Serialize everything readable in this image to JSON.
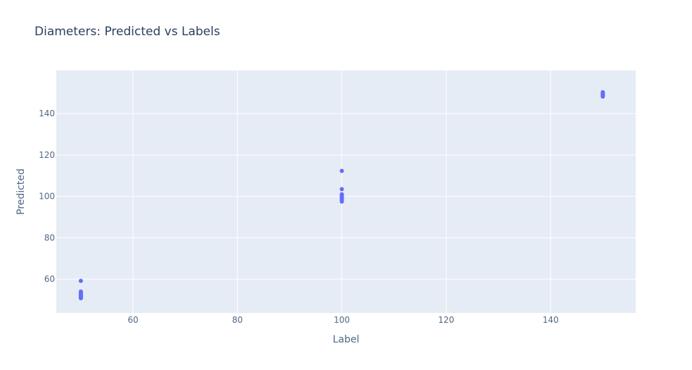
{
  "chart_data": {
    "type": "scatter",
    "title": "Diameters: Predicted vs Labels",
    "xlabel": "Label",
    "ylabel": "Predicted",
    "xlim": [
      45.3,
      156.3
    ],
    "ylim": [
      43.7,
      160.8
    ],
    "xticks": [
      60,
      80,
      100,
      120,
      140
    ],
    "yticks": [
      60,
      80,
      100,
      120,
      140
    ],
    "grid": true,
    "marker_color": "#636efa",
    "background_color": "#e5ecf6",
    "series": [
      {
        "x": [
          50,
          50,
          50,
          50,
          50,
          50,
          50,
          50,
          50,
          50,
          100,
          100,
          100,
          100,
          100,
          100,
          100,
          100,
          100,
          100,
          150,
          150,
          150,
          150,
          150,
          150
        ],
        "y": [
          59.2,
          54.0,
          53.5,
          53.0,
          52.5,
          52.0,
          51.5,
          51.2,
          50.8,
          51.8,
          112.3,
          103.5,
          101.0,
          100.5,
          100.0,
          99.5,
          99.0,
          98.5,
          98.0,
          97.5,
          150.3,
          149.8,
          149.4,
          149.0,
          148.6,
          148.2
        ]
      }
    ]
  }
}
